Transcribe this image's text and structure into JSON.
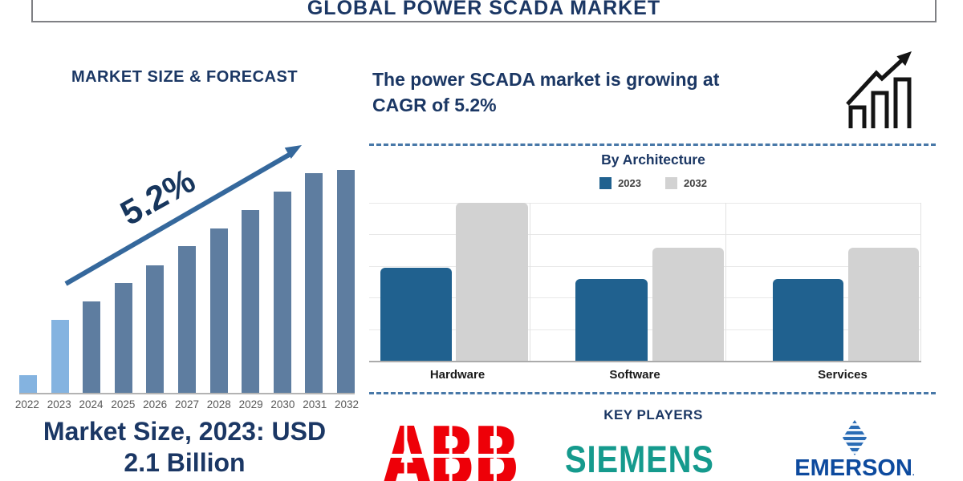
{
  "header": {
    "title": "GLOBAL POWER SCADA MARKET"
  },
  "left_panel": {
    "section_title": "MARKET SIZE & FORECAST",
    "growth_annotation": "5.2%",
    "market_size_line1": "Market Size, 2023: USD",
    "market_size_line2": "2.1 Billion"
  },
  "right_panel": {
    "headline_line1": "The power SCADA market is growing at",
    "headline_line2": "CAGR of 5.2%",
    "architecture_title": "By Architecture",
    "key_players_title": "KEY PLAYERS"
  },
  "key_players": {
    "abb": "ABB",
    "siemens": "SIEMENS",
    "emerson": "EMERSON",
    "emerson_suffix": "."
  },
  "icons": {
    "growth_chart_icon": "three ascending outlined bars with rising zigzag arrow, black",
    "trend_arrow_icon": "steel-blue rising arrow across forecast bars",
    "emerson_diamond_icon": "blue striped rhombus"
  },
  "colors": {
    "navy_text": "#1b3764",
    "forecast_bar_light": "#84b3e0",
    "forecast_bar_steel": "#5e7da0",
    "trend_arrow": "#35689c",
    "dashed_divider": "#4878a8",
    "arch_2023_bar": "#20618f",
    "arch_2032_bar": "#d2d2d2",
    "axis_gray": "#b3b3b3",
    "abb_red": "#ee0008",
    "siemens_teal": "#159a8d",
    "emerson_blue": "#0d4a9e"
  },
  "chart_data": [
    {
      "type": "bar",
      "title": "MARKET SIZE & FORECAST",
      "categories": [
        "2022",
        "2023",
        "2024",
        "2025",
        "2026",
        "2027",
        "2028",
        "2029",
        "2030",
        "2031",
        "2032"
      ],
      "values": [
        22,
        91,
        114,
        137,
        159,
        183,
        205,
        228,
        251,
        274,
        278
      ],
      "values_note": "no y-axis shown; values are bar heights in screenshot pixels; the 2023 bar corresponds to USD 2.1 Billion",
      "bar_colors": [
        "#84b3e0",
        "#84b3e0",
        "#5e7da0",
        "#5e7da0",
        "#5e7da0",
        "#5e7da0",
        "#5e7da0",
        "#5e7da0",
        "#5e7da0",
        "#5e7da0",
        "#5e7da0"
      ],
      "annotation": "5.2%",
      "annotation_rotation_deg": -29,
      "xlabel": "",
      "ylabel": "",
      "grid": false
    },
    {
      "type": "grouped-bar",
      "title": "By Architecture",
      "categories": [
        "Hardware",
        "Software",
        "Services"
      ],
      "series": [
        {
          "name": "2023",
          "color": "#20618f",
          "values": [
            116,
            102,
            102
          ]
        },
        {
          "name": "2032",
          "color": "#d2d2d2",
          "values": [
            197,
            141,
            141
          ]
        }
      ],
      "values_note": "no y-axis labels; values are bar heights in screenshot pixels",
      "legend_position": "top-center",
      "grid": "horizontal"
    }
  ]
}
